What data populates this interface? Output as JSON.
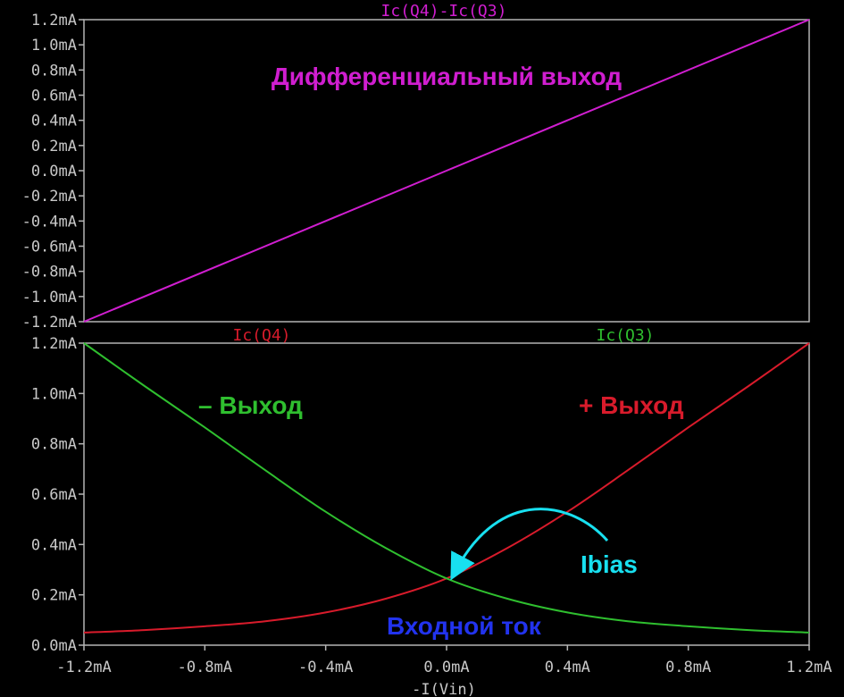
{
  "colors": {
    "background": "#000000",
    "axis": "#b4b4b4",
    "tick_text": "#c8c8c8",
    "magenta": "#d01ed0",
    "red": "#d81b2b",
    "green": "#2fbf2f",
    "cyan": "#18e0f0",
    "blue": "#2233ee"
  },
  "chart_data": [
    {
      "type": "line",
      "title": "Ic(Q4)-Ic(Q3)",
      "annotation": "Дифференциальный выход",
      "xlim": [
        -1.2,
        1.2
      ],
      "ylim": [
        -1.2,
        1.2
      ],
      "yticks": [
        "1.2mA",
        "1.0mA",
        "0.8mA",
        "0.6mA",
        "0.4mA",
        "0.2mA",
        "0.0mA",
        "-0.2mA",
        "-0.4mA",
        "-0.6mA",
        "-0.8mA",
        "-1.0mA",
        "-1.2mA"
      ],
      "series": [
        {
          "name": "Ic(Q4)-Ic(Q3)",
          "color": "#d01ed0",
          "x": [
            -1.2,
            1.2
          ],
          "y": [
            -1.2,
            1.2
          ]
        }
      ]
    },
    {
      "type": "line",
      "xlabel": "-I(Vin)",
      "xlim": [
        -1.2,
        1.2
      ],
      "ylim": [
        0.0,
        1.2
      ],
      "xticks": [
        "-1.2mA",
        "-0.8mA",
        "-0.4mA",
        "0.0mA",
        "0.4mA",
        "0.8mA",
        "1.2mA"
      ],
      "yticks": [
        "1.2mA",
        "1.0mA",
        "0.8mA",
        "0.6mA",
        "0.4mA",
        "0.2mA",
        "0.0mA"
      ],
      "series": [
        {
          "name": "Ic(Q4)",
          "color": "#d81b2b",
          "x": [
            -1.2,
            -1.0,
            -0.8,
            -0.6,
            -0.4,
            -0.2,
            0.0,
            0.2,
            0.4,
            0.6,
            0.8,
            1.0,
            1.2
          ],
          "y": [
            0.05,
            0.06,
            0.075,
            0.095,
            0.13,
            0.185,
            0.265,
            0.385,
            0.53,
            0.695,
            0.865,
            1.03,
            1.2
          ]
        },
        {
          "name": "Ic(Q3)",
          "color": "#2fbf2f",
          "x": [
            -1.2,
            -1.0,
            -0.8,
            -0.6,
            -0.4,
            -0.2,
            0.0,
            0.2,
            0.4,
            0.6,
            0.8,
            1.0,
            1.2
          ],
          "y": [
            1.2,
            1.03,
            0.865,
            0.695,
            0.53,
            0.385,
            0.265,
            0.185,
            0.13,
            0.095,
            0.075,
            0.06,
            0.05
          ]
        }
      ],
      "annotations": [
        {
          "text": "– Выход",
          "color": "#2fbf2f"
        },
        {
          "text": "+ Выход",
          "color": "#d81b2b"
        },
        {
          "text": "Ibias",
          "color": "#18e0f0"
        },
        {
          "text": "Входной ток",
          "color": "#2233ee"
        }
      ]
    }
  ]
}
